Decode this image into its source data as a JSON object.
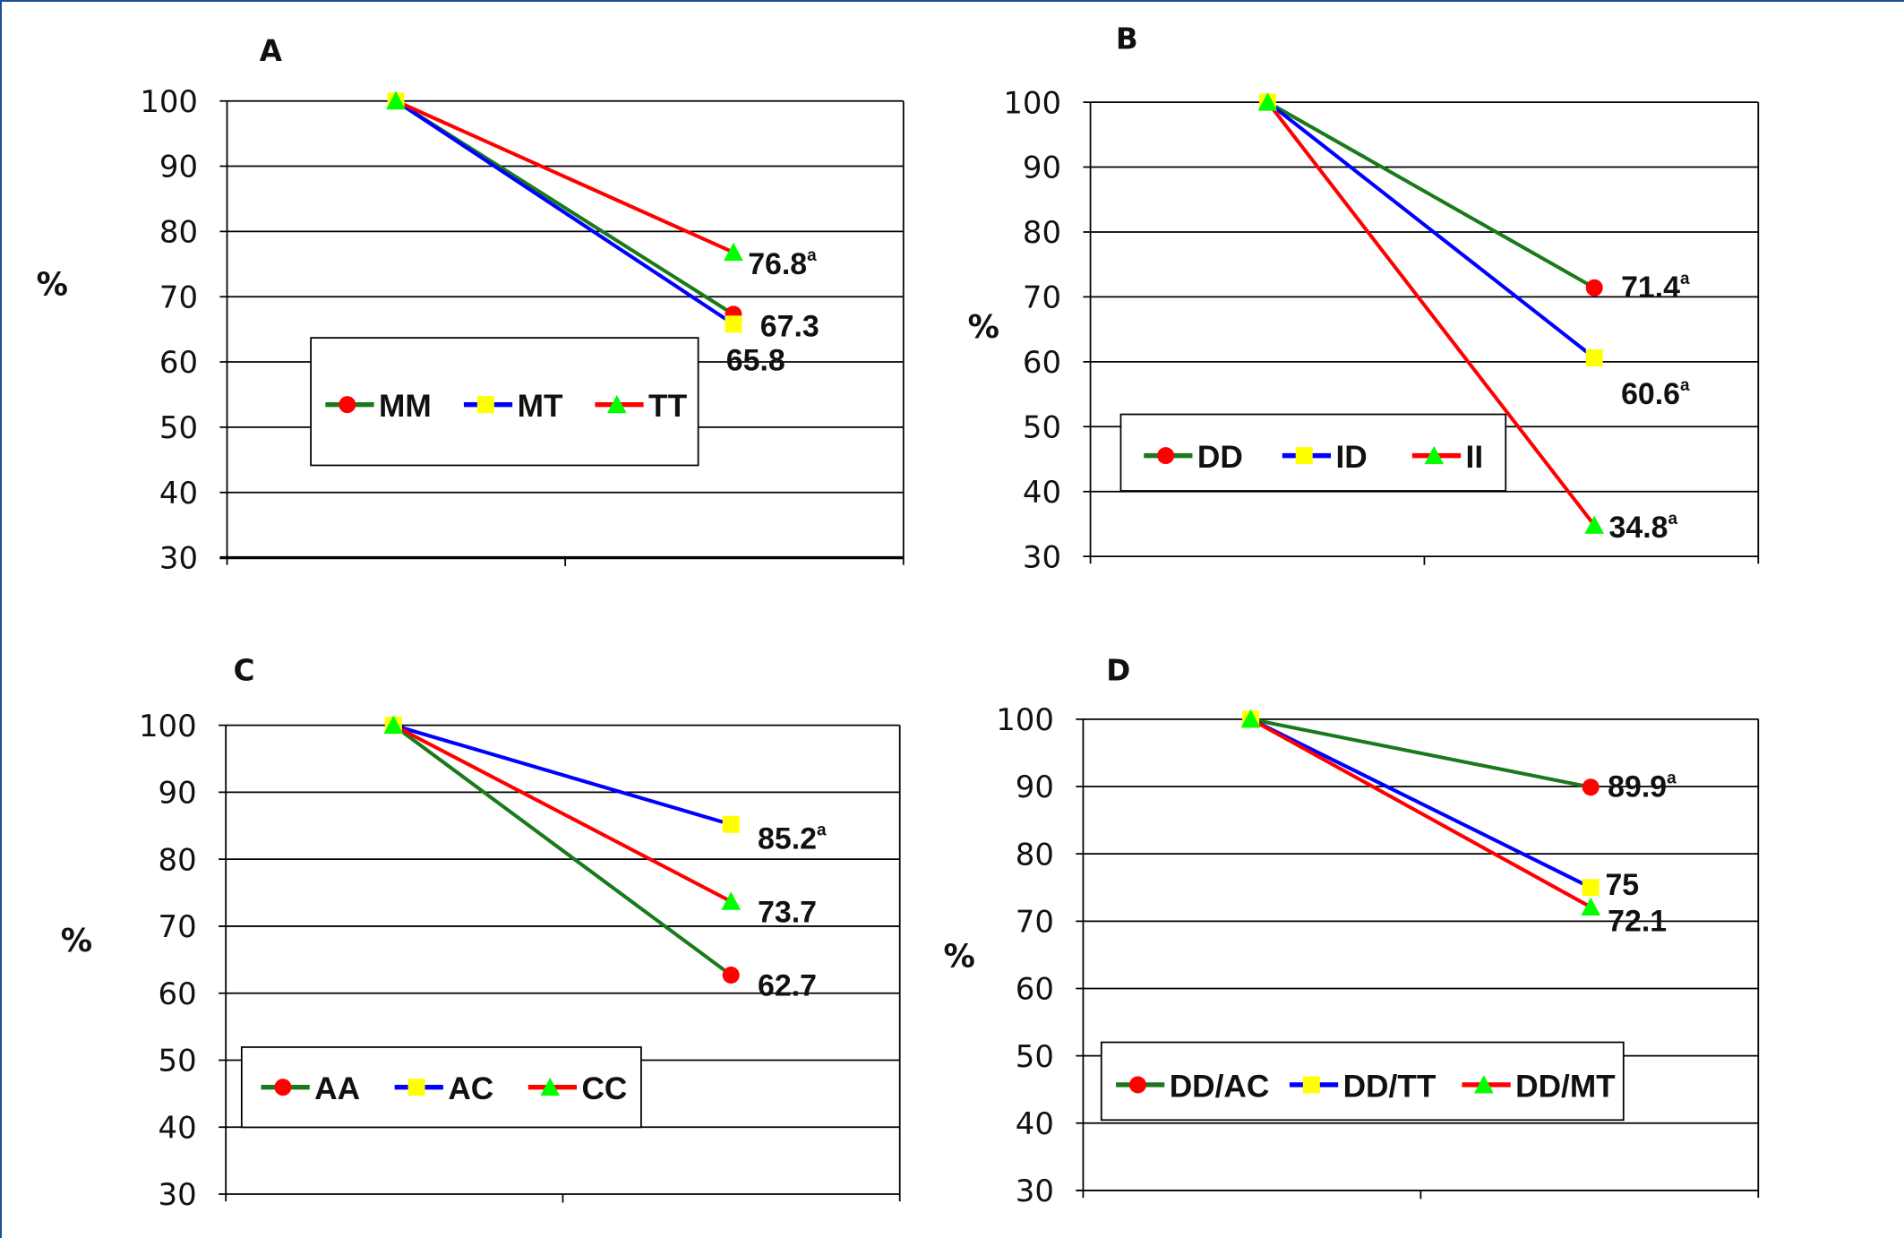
{
  "chart_data": [
    {
      "type": "line",
      "title": "A",
      "ylabel": "%",
      "ylim": [
        30,
        100
      ],
      "yticks": [
        "100",
        "90",
        "80",
        "70",
        "60",
        "50",
        "40",
        "30"
      ],
      "x": [
        1,
        2
      ],
      "legend_position": "center-left",
      "series": [
        {
          "name": "MM",
          "line_color": "#1a7a1a",
          "marker": "circle",
          "marker_color": "#ff0000",
          "values": [
            100,
            67.3
          ],
          "label": "67.3",
          "sup": ""
        },
        {
          "name": "MT",
          "line_color": "#0000ff",
          "marker": "square",
          "marker_color": "#ffff00",
          "values": [
            100,
            65.8
          ],
          "label": "65.8",
          "sup": ""
        },
        {
          "name": "TT",
          "line_color": "#ff0000",
          "marker": "triangle",
          "marker_color": "#00ff00",
          "values": [
            100,
            76.8
          ],
          "label": "76.8",
          "sup": "a"
        }
      ]
    },
    {
      "type": "line",
      "title": "B",
      "ylabel": "%",
      "ylim": [
        30,
        100
      ],
      "yticks": [
        "100",
        "90",
        "80",
        "70",
        "60",
        "50",
        "40",
        "30"
      ],
      "x": [
        1,
        2
      ],
      "legend_position": "center-left",
      "series": [
        {
          "name": "DD",
          "line_color": "#1a7a1a",
          "marker": "circle",
          "marker_color": "#ff0000",
          "values": [
            100,
            71.4
          ],
          "label": "71.4",
          "sup": "a"
        },
        {
          "name": "ID",
          "line_color": "#0000ff",
          "marker": "square",
          "marker_color": "#ffff00",
          "values": [
            100,
            60.6
          ],
          "label": "60.6",
          "sup": "a"
        },
        {
          "name": "II",
          "line_color": "#ff0000",
          "marker": "triangle",
          "marker_color": "#00ff00",
          "values": [
            100,
            34.8
          ],
          "label": "34.8",
          "sup": "a"
        }
      ]
    },
    {
      "type": "line",
      "title": "C",
      "ylabel": "%",
      "ylim": [
        30,
        100
      ],
      "yticks": [
        "100",
        "90",
        "80",
        "70",
        "60",
        "50",
        "40",
        "30"
      ],
      "x": [
        1,
        2
      ],
      "legend_position": "center-left",
      "series": [
        {
          "name": "AA",
          "line_color": "#1a7a1a",
          "marker": "circle",
          "marker_color": "#ff0000",
          "values": [
            100,
            62.7
          ],
          "label": "62.7",
          "sup": ""
        },
        {
          "name": "AC",
          "line_color": "#0000ff",
          "marker": "square",
          "marker_color": "#ffff00",
          "values": [
            100,
            85.2
          ],
          "label": "85.2",
          "sup": "a"
        },
        {
          "name": "CC",
          "line_color": "#ff0000",
          "marker": "triangle",
          "marker_color": "#00ff00",
          "values": [
            100,
            73.7
          ],
          "label": "73.7",
          "sup": ""
        }
      ]
    },
    {
      "type": "line",
      "title": "D",
      "ylabel": "%",
      "ylim": [
        30,
        100
      ],
      "yticks": [
        "100",
        "90",
        "80",
        "70",
        "60",
        "50",
        "40",
        "30"
      ],
      "x": [
        1,
        2
      ],
      "legend_position": "center-left",
      "series": [
        {
          "name": "DD/AC",
          "line_color": "#1a7a1a",
          "marker": "circle",
          "marker_color": "#ff0000",
          "values": [
            100,
            89.9
          ],
          "label": "89.9",
          "sup": "a"
        },
        {
          "name": "DD/TT",
          "line_color": "#0000ff",
          "marker": "square",
          "marker_color": "#ffff00",
          "values": [
            100,
            75
          ],
          "label": "75",
          "sup": ""
        },
        {
          "name": "DD/MT",
          "line_color": "#ff0000",
          "marker": "triangle",
          "marker_color": "#00ff00",
          "values": [
            100,
            72.1
          ],
          "label": "72.1",
          "sup": ""
        }
      ]
    }
  ]
}
